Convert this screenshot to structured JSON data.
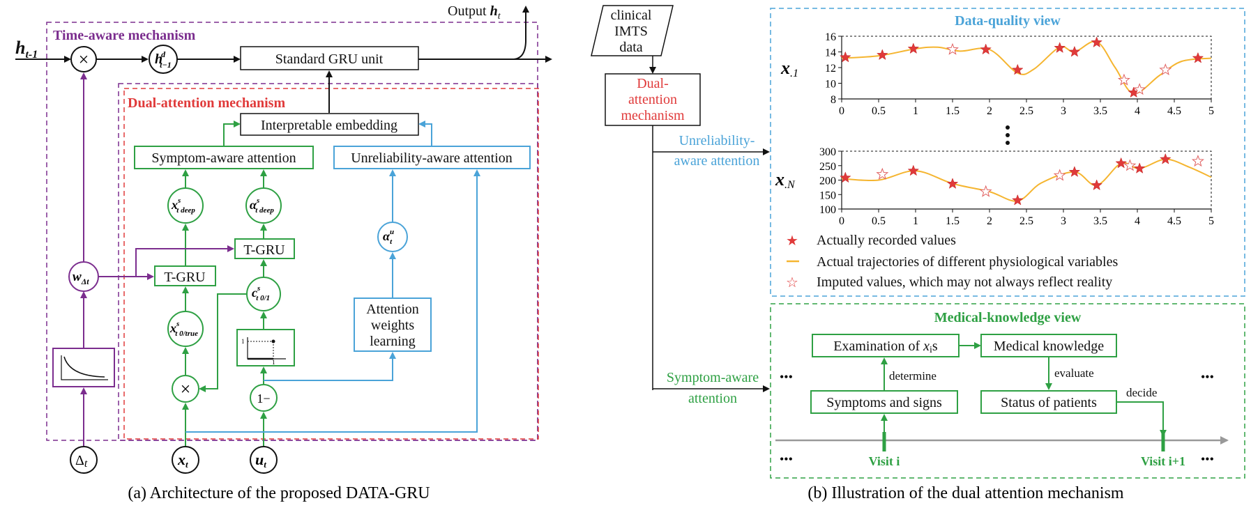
{
  "colors": {
    "purple": "#7b2d8e",
    "green": "#2ea043",
    "blue": "#4aa3d8",
    "red": "#e03a3a",
    "orange": "#f5b530",
    "black": "#111111",
    "gray": "#999999"
  },
  "panel_a": {
    "caption": "(a) Architecture of the proposed DATA-GRU",
    "time_aware_title": "Time-aware mechanism",
    "dual_attention_title": "Dual-attention mechanism",
    "output_label": "Output",
    "output_var": "h",
    "output_sub": "t",
    "h_prev": "h",
    "h_prev_sub": "t-1",
    "h_decay": "h",
    "h_decay_sup": "d",
    "h_decay_sub": "t−1",
    "gru_unit": "Standard GRU unit",
    "embedding": "Interpretable embedding",
    "symptom_attention": "Symptom-aware attention",
    "unreliability_attention": "Unreliability-aware attention",
    "x_deep": "x",
    "x_deep_sup": "s",
    "x_deep_sub": "t deep",
    "a_deep": "α",
    "a_deep_sup": "s",
    "a_deep_sub": "t deep",
    "tgru_right": "T-GRU",
    "tgru_left": "T-GRU",
    "w_dt": "w",
    "w_dt_sub": "Δt",
    "a_u": "α",
    "a_u_sup": "u",
    "a_u_sub": "t",
    "c_label": "c",
    "c_sup": "s",
    "c_sub": "t 0/1",
    "x_true": "x",
    "x_true_sup": "s",
    "x_true_sub": "t 0/true",
    "attention_box": [
      "Attention",
      "weights",
      "learning"
    ],
    "one_minus": "1−",
    "multiply_symbol": "×",
    "delta_t": "Δ",
    "delta_t_sub": "t",
    "x_t": "x",
    "x_t_sub": "t",
    "u_t": "u",
    "u_t_sub": "t",
    "step_tick": "1"
  },
  "panel_b": {
    "caption": "(b) Illustration of the dual attention mechanism",
    "input_lines": [
      "clinical",
      "IMTS",
      "data"
    ],
    "dual_lines": [
      "Dual-",
      "attention",
      "mechanism"
    ],
    "unreliability_lines": [
      "Unreliability-",
      "aware attention"
    ],
    "symptom_lines": [
      "Symptom-aware",
      "attention"
    ],
    "data_quality_title": "Data-quality view",
    "medical_title": "Medical-knowledge view",
    "x1_var": "x",
    "x1_sub": ".1",
    "xN_var": "x",
    "xN_sub": ".N",
    "legend": [
      {
        "symbol": "★",
        "label": "Actually recorded values"
      },
      {
        "symbol": "line",
        "label": "Actual trajectories of different physiological variables"
      },
      {
        "symbol": "☆",
        "label": "Imputed values, which may not always reflect reality"
      }
    ],
    "examination_prefix": "Examination of ",
    "examination_var": "x",
    "examination_sub": "i",
    "examination_suffix": "s",
    "medical_knowledge": "Medical knowledge",
    "symptoms": "Symptoms and signs",
    "status": "Status of patients",
    "determine": "determine",
    "evaluate": "evaluate",
    "decide": "decide",
    "visit_i": "Visit i",
    "visit_i1": "Visit i+1",
    "ellipsis": "•••"
  },
  "chart_data": [
    {
      "type": "line",
      "x_ticks": [
        "0",
        "0.5",
        "1",
        "1.5",
        "2",
        "2.5",
        "3",
        "3.5",
        "4",
        "4.5",
        "5"
      ],
      "y_ticks": [
        "8",
        "10",
        "12",
        "14",
        "16"
      ],
      "xlim": [
        0,
        5
      ],
      "ylim": [
        8,
        16
      ],
      "recorded": [
        [
          0.05,
          13.3
        ],
        [
          0.55,
          13.6
        ],
        [
          0.97,
          14.4
        ],
        [
          1.95,
          14.3
        ],
        [
          2.38,
          11.7
        ],
        [
          2.95,
          14.5
        ],
        [
          3.15,
          14.0
        ],
        [
          3.45,
          15.2
        ],
        [
          3.95,
          8.8
        ],
        [
          4.82,
          13.2
        ]
      ],
      "imputed": [
        [
          1.5,
          14.3
        ],
        [
          3.82,
          10.4
        ],
        [
          4.03,
          9.2
        ],
        [
          4.38,
          11.7
        ]
      ],
      "trajectory": [
        [
          0,
          13.2
        ],
        [
          0.5,
          13.5
        ],
        [
          1,
          14.4
        ],
        [
          1.3,
          14.6
        ],
        [
          1.6,
          14.1
        ],
        [
          2,
          14.3
        ],
        [
          2.38,
          11.3
        ],
        [
          2.6,
          11.8
        ],
        [
          2.95,
          14.6
        ],
        [
          3.15,
          14.0
        ],
        [
          3.45,
          15.3
        ],
        [
          3.7,
          12.0
        ],
        [
          3.95,
          8.7
        ],
        [
          4.3,
          11.0
        ],
        [
          4.6,
          12.8
        ],
        [
          5,
          13.2
        ]
      ]
    },
    {
      "type": "line",
      "x_ticks": [
        "0",
        "0.5",
        "1",
        "1.5",
        "2",
        "2.5",
        "3",
        "3.5",
        "4",
        "4.5",
        "5"
      ],
      "y_ticks": [
        "100",
        "150",
        "200",
        "250",
        "300"
      ],
      "xlim": [
        0,
        5
      ],
      "ylim": [
        100,
        300
      ],
      "recorded": [
        [
          0.05,
          208
        ],
        [
          0.97,
          232
        ],
        [
          1.5,
          187
        ],
        [
          2.38,
          130
        ],
        [
          3.15,
          228
        ],
        [
          3.45,
          182
        ],
        [
          3.78,
          258
        ],
        [
          4.03,
          240
        ],
        [
          4.38,
          272
        ]
      ],
      "imputed": [
        [
          0.55,
          220
        ],
        [
          1.95,
          160
        ],
        [
          2.95,
          216
        ],
        [
          3.9,
          250
        ],
        [
          4.82,
          265
        ]
      ],
      "trajectory": [
        [
          0,
          205
        ],
        [
          0.5,
          200
        ],
        [
          1,
          232
        ],
        [
          1.5,
          188
        ],
        [
          2,
          160
        ],
        [
          2.38,
          128
        ],
        [
          2.7,
          190
        ],
        [
          3.15,
          228
        ],
        [
          3.45,
          182
        ],
        [
          3.78,
          258
        ],
        [
          4.03,
          240
        ],
        [
          4.38,
          272
        ],
        [
          4.7,
          245
        ],
        [
          5,
          210
        ]
      ]
    }
  ]
}
